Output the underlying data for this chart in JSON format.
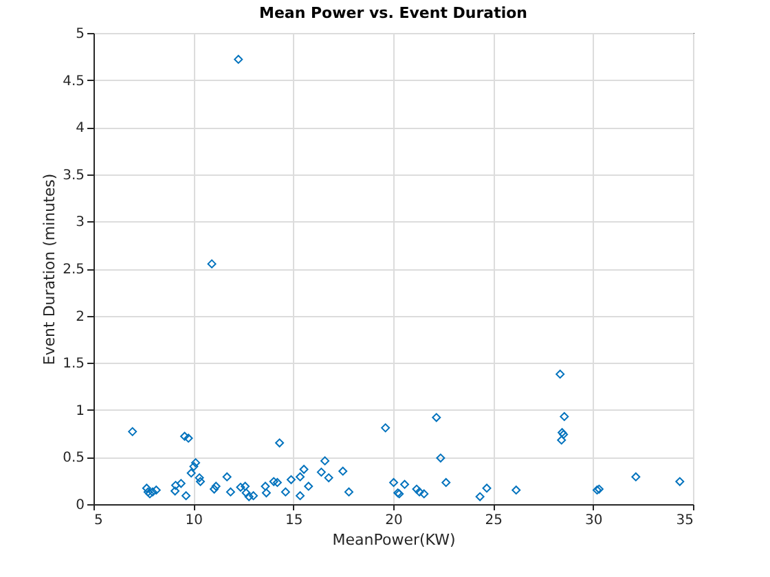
{
  "chart_data": {
    "type": "scatter",
    "title": "Mean Power vs. Event Duration",
    "xlabel": "MeanPower(KW)",
    "ylabel": "Event Duration (minutes)",
    "x": [
      6.95,
      9.56,
      9.75,
      14.31,
      10.11,
      10.02,
      9.89,
      10.3,
      10.35,
      7.66,
      7.73,
      7.82,
      7.96,
      8.14,
      9.11,
      9.38,
      9.08,
      9.63,
      11.04,
      11.13,
      11.68,
      11.86,
      12.36,
      12.59,
      12.64,
      12.78,
      13.0,
      13.6,
      13.65,
      14.02,
      14.2,
      14.61,
      14.89,
      15.34,
      15.53,
      15.34,
      15.76,
      16.58,
      16.4,
      16.77,
      19.61,
      22.16,
      22.37,
      17.48,
      17.78,
      20.02,
      20.57,
      20.23,
      20.3,
      21.17,
      21.31,
      21.54,
      22.64,
      24.34,
      24.68,
      26.15,
      28.35,
      28.56,
      28.45,
      28.52,
      28.42,
      30.2,
      30.3,
      32.14,
      34.34,
      12.25,
      10.92
    ],
    "values": [
      0.77,
      0.72,
      0.7,
      0.65,
      0.44,
      0.4,
      0.33,
      0.28,
      0.24,
      0.17,
      0.13,
      0.11,
      0.13,
      0.15,
      0.2,
      0.22,
      0.14,
      0.09,
      0.16,
      0.19,
      0.29,
      0.13,
      0.18,
      0.19,
      0.12,
      0.08,
      0.09,
      0.19,
      0.12,
      0.24,
      0.23,
      0.13,
      0.26,
      0.29,
      0.37,
      0.09,
      0.19,
      0.46,
      0.34,
      0.28,
      0.81,
      0.92,
      0.49,
      0.35,
      0.13,
      0.23,
      0.21,
      0.12,
      0.11,
      0.16,
      0.13,
      0.11,
      0.23,
      0.08,
      0.17,
      0.15,
      1.38,
      0.93,
      0.76,
      0.74,
      0.68,
      0.15,
      0.16,
      0.29,
      0.24,
      4.72,
      2.55
    ],
    "color": "#0072bd",
    "marker": "diamond",
    "grid": true,
    "xlim": [
      5,
      35
    ],
    "xticks": [
      5,
      10,
      15,
      20,
      25,
      30,
      35
    ],
    "ylim": [
      0,
      5
    ],
    "yticks": [
      0,
      0.5,
      1,
      1.5,
      2,
      2.5,
      3,
      3.5,
      4,
      4.5,
      5
    ]
  }
}
